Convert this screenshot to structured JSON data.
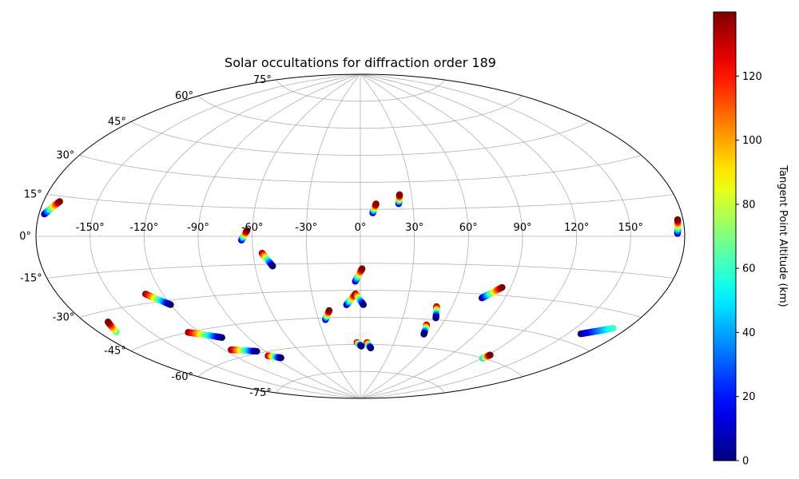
{
  "chart_data": {
    "type": "scatter",
    "projection": "aitoff",
    "title": "Solar occultations for diffraction order 189",
    "grid": true,
    "longitude_ticks": [
      "-150°",
      "-120°",
      "-90°",
      "-60°",
      "-30°",
      "0°",
      "30°",
      "60°",
      "90°",
      "120°",
      "150°"
    ],
    "longitude_tick_values": [
      -150,
      -120,
      -90,
      -60,
      -30,
      0,
      30,
      60,
      90,
      120,
      150
    ],
    "latitude_ticks": [
      "-75°",
      "-60°",
      "-45°",
      "-30°",
      "-15°",
      "0°",
      "15°",
      "30°",
      "45°",
      "60°",
      "75°"
    ],
    "latitude_tick_values": [
      -75,
      -60,
      -45,
      -30,
      -15,
      0,
      15,
      30,
      45,
      60,
      75
    ],
    "colorbar": {
      "label": "Tangent Point Altitude (km)",
      "colormap": "jet",
      "range": [
        0,
        140
      ],
      "ticks": [
        "0",
        "20",
        "40",
        "60",
        "80",
        "100",
        "120"
      ],
      "tick_values": [
        0,
        20,
        40,
        60,
        80,
        100,
        120
      ],
      "orientation": "right"
    },
    "tracks": [
      {
        "lon_start": -177,
        "lat_start": 8,
        "lon_end": -171,
        "lat_end": 13,
        "alt_start": 0,
        "alt_end": 140
      },
      {
        "lon_start": -170,
        "lat_start": -38,
        "lon_end": -167,
        "lat_end": -34,
        "alt_start": 60,
        "alt_end": 140
      },
      {
        "lon_start": -130,
        "lat_start": -26,
        "lon_end": -120,
        "lat_end": -32,
        "alt_start": 140,
        "alt_end": 0
      },
      {
        "lon_start": -127,
        "lat_start": -45,
        "lon_end": -109,
        "lat_end": -50,
        "alt_start": 140,
        "alt_end": 0
      },
      {
        "lon_start": -115,
        "lat_start": -56,
        "lon_end": -97,
        "lat_end": -59,
        "alt_start": 140,
        "alt_end": 0
      },
      {
        "lon_start": -93,
        "lat_start": -62,
        "lon_end": -84,
        "lat_end": -64,
        "alt_start": 140,
        "alt_end": 0
      },
      {
        "lon_start": -66,
        "lat_start": -2,
        "lon_end": -63,
        "lat_end": 3,
        "alt_start": 0,
        "alt_end": 140
      },
      {
        "lon_start": -55,
        "lat_start": -9,
        "lon_end": -50,
        "lat_end": -16,
        "alt_start": 140,
        "alt_end": 0
      },
      {
        "lon_start": -25,
        "lat_start": -46,
        "lon_end": -21,
        "lat_end": -41,
        "alt_start": 0,
        "alt_end": 140
      },
      {
        "lon_start": -9,
        "lat_start": -38,
        "lon_end": -3,
        "lat_end": -32,
        "alt_start": 0,
        "alt_end": 140
      },
      {
        "lon_start": -3,
        "lat_start": -32,
        "lon_end": 2,
        "lat_end": -38,
        "alt_start": 140,
        "alt_end": 0
      },
      {
        "lon_start": -3,
        "lat_start": -25,
        "lon_end": 1,
        "lat_end": -18,
        "alt_start": 0,
        "alt_end": 140
      },
      {
        "lon_start": -3,
        "lat_start": -59,
        "lon_end": 1,
        "lat_end": -61,
        "alt_start": 140,
        "alt_end": 0
      },
      {
        "lon_start": 6,
        "lat_start": -59,
        "lon_end": 10,
        "lat_end": -62,
        "alt_start": 140,
        "alt_end": 0
      },
      {
        "lon_start": 7,
        "lat_start": 13,
        "lon_end": 9,
        "lat_end": 18,
        "alt_start": 0,
        "alt_end": 140
      },
      {
        "lon_start": 22,
        "lat_start": 18,
        "lon_end": 23,
        "lat_end": 23,
        "alt_start": 0,
        "alt_end": 140
      },
      {
        "lon_start": 50,
        "lat_start": -38,
        "lon_end": 53,
        "lat_end": -44,
        "alt_start": 140,
        "alt_end": 0
      },
      {
        "lon_start": 49,
        "lat_start": -48,
        "lon_end": 51,
        "lat_end": -53,
        "alt_start": 140,
        "alt_end": 0
      },
      {
        "lon_start": 76,
        "lat_start": -32,
        "lon_end": 85,
        "lat_end": -26,
        "alt_start": 0,
        "alt_end": 140
      },
      {
        "lon_start": 121,
        "lat_start": -60,
        "lon_end": 122,
        "lat_end": -58,
        "alt_start": 40,
        "alt_end": 140
      },
      {
        "lon_start": 158,
        "lat_start": -41,
        "lon_end": 172,
        "lat_end": -36,
        "alt_start": 0,
        "alt_end": 60
      },
      {
        "lon_start": 176,
        "lat_start": 1,
        "lon_end": 177,
        "lat_end": 6,
        "alt_start": 0,
        "alt_end": 140
      }
    ]
  }
}
